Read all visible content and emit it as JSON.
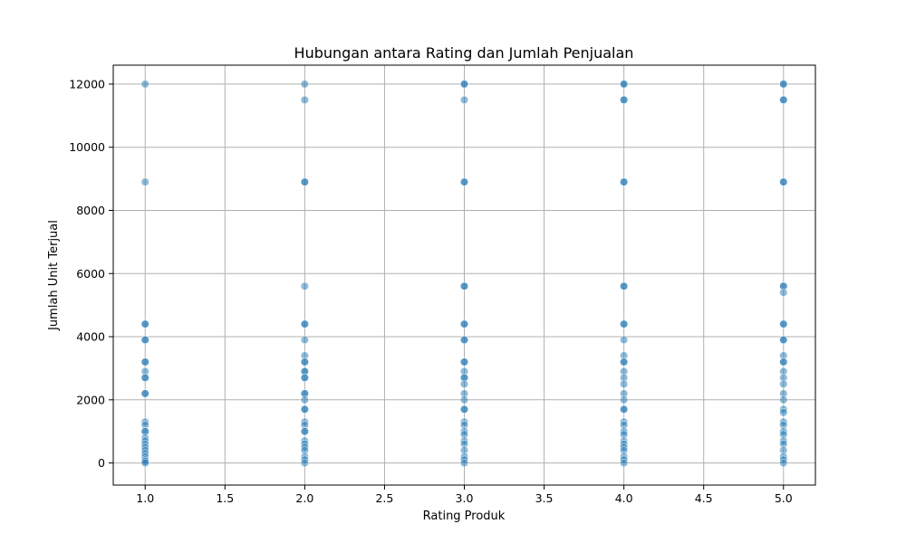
{
  "chart_data": {
    "type": "scatter",
    "title": "Hubungan antara Rating dan Jumlah Penjualan",
    "xlabel": "Rating Produk",
    "ylabel": "Jumlah Unit Terjual",
    "xlim": [
      0.8,
      5.2
    ],
    "ylim": [
      -700,
      12600
    ],
    "xticks": [
      1.0,
      1.5,
      2.0,
      2.5,
      3.0,
      3.5,
      4.0,
      4.5,
      5.0
    ],
    "xtick_labels": [
      "1.0",
      "1.5",
      "2.0",
      "2.5",
      "3.0",
      "3.5",
      "4.0",
      "4.5",
      "5.0"
    ],
    "yticks": [
      0,
      2000,
      4000,
      6000,
      8000,
      10000,
      12000
    ],
    "ytick_labels": [
      "0",
      "2000",
      "4000",
      "6000",
      "8000",
      "10000",
      "12000"
    ],
    "grid": true,
    "marker_color": "#1f77b4",
    "marker_alpha": 0.5,
    "points": [
      {
        "x": 1,
        "y": 12000
      },
      {
        "x": 1,
        "y": 8900
      },
      {
        "x": 1,
        "y": 4400
      },
      {
        "x": 1,
        "y": 4400
      },
      {
        "x": 1,
        "y": 3900
      },
      {
        "x": 1,
        "y": 3900
      },
      {
        "x": 1,
        "y": 3200
      },
      {
        "x": 1,
        "y": 3200
      },
      {
        "x": 1,
        "y": 2900
      },
      {
        "x": 1,
        "y": 2700
      },
      {
        "x": 1,
        "y": 2700
      },
      {
        "x": 1,
        "y": 2200
      },
      {
        "x": 1,
        "y": 2200
      },
      {
        "x": 1,
        "y": 1300
      },
      {
        "x": 1,
        "y": 1200
      },
      {
        "x": 1,
        "y": 1000
      },
      {
        "x": 1,
        "y": 1000
      },
      {
        "x": 1,
        "y": 800
      },
      {
        "x": 1,
        "y": 700
      },
      {
        "x": 1,
        "y": 600
      },
      {
        "x": 1,
        "y": 500
      },
      {
        "x": 1,
        "y": 400
      },
      {
        "x": 1,
        "y": 300
      },
      {
        "x": 1,
        "y": 200
      },
      {
        "x": 1,
        "y": 100
      },
      {
        "x": 1,
        "y": 50
      },
      {
        "x": 1,
        "y": 0
      },
      {
        "x": 2,
        "y": 12000
      },
      {
        "x": 2,
        "y": 11500
      },
      {
        "x": 2,
        "y": 8900
      },
      {
        "x": 2,
        "y": 8900
      },
      {
        "x": 2,
        "y": 5600
      },
      {
        "x": 2,
        "y": 4400
      },
      {
        "x": 2,
        "y": 4400
      },
      {
        "x": 2,
        "y": 3900
      },
      {
        "x": 2,
        "y": 3400
      },
      {
        "x": 2,
        "y": 3200
      },
      {
        "x": 2,
        "y": 3200
      },
      {
        "x": 2,
        "y": 2900
      },
      {
        "x": 2,
        "y": 2900
      },
      {
        "x": 2,
        "y": 2700
      },
      {
        "x": 2,
        "y": 2700
      },
      {
        "x": 2,
        "y": 2200
      },
      {
        "x": 2,
        "y": 2200
      },
      {
        "x": 2,
        "y": 2000
      },
      {
        "x": 2,
        "y": 1700
      },
      {
        "x": 2,
        "y": 1700
      },
      {
        "x": 2,
        "y": 1300
      },
      {
        "x": 2,
        "y": 1200
      },
      {
        "x": 2,
        "y": 1000
      },
      {
        "x": 2,
        "y": 1000
      },
      {
        "x": 2,
        "y": 700
      },
      {
        "x": 2,
        "y": 600
      },
      {
        "x": 2,
        "y": 500
      },
      {
        "x": 2,
        "y": 400
      },
      {
        "x": 2,
        "y": 200
      },
      {
        "x": 2,
        "y": 100
      },
      {
        "x": 2,
        "y": 0
      },
      {
        "x": 3,
        "y": 12000
      },
      {
        "x": 3,
        "y": 12000
      },
      {
        "x": 3,
        "y": 11500
      },
      {
        "x": 3,
        "y": 8900
      },
      {
        "x": 3,
        "y": 8900
      },
      {
        "x": 3,
        "y": 5600
      },
      {
        "x": 3,
        "y": 5600
      },
      {
        "x": 3,
        "y": 4400
      },
      {
        "x": 3,
        "y": 4400
      },
      {
        "x": 3,
        "y": 3900
      },
      {
        "x": 3,
        "y": 3900
      },
      {
        "x": 3,
        "y": 3200
      },
      {
        "x": 3,
        "y": 3200
      },
      {
        "x": 3,
        "y": 2900
      },
      {
        "x": 3,
        "y": 2700
      },
      {
        "x": 3,
        "y": 2700
      },
      {
        "x": 3,
        "y": 2500
      },
      {
        "x": 3,
        "y": 2200
      },
      {
        "x": 3,
        "y": 2000
      },
      {
        "x": 3,
        "y": 1700
      },
      {
        "x": 3,
        "y": 1700
      },
      {
        "x": 3,
        "y": 1300
      },
      {
        "x": 3,
        "y": 1200
      },
      {
        "x": 3,
        "y": 1000
      },
      {
        "x": 3,
        "y": 900
      },
      {
        "x": 3,
        "y": 700
      },
      {
        "x": 3,
        "y": 600
      },
      {
        "x": 3,
        "y": 400
      },
      {
        "x": 3,
        "y": 200
      },
      {
        "x": 3,
        "y": 100
      },
      {
        "x": 3,
        "y": 0
      },
      {
        "x": 4,
        "y": 12000
      },
      {
        "x": 4,
        "y": 12000
      },
      {
        "x": 4,
        "y": 11500
      },
      {
        "x": 4,
        "y": 11500
      },
      {
        "x": 4,
        "y": 8900
      },
      {
        "x": 4,
        "y": 8900
      },
      {
        "x": 4,
        "y": 5600
      },
      {
        "x": 4,
        "y": 5600
      },
      {
        "x": 4,
        "y": 4400
      },
      {
        "x": 4,
        "y": 4400
      },
      {
        "x": 4,
        "y": 3900
      },
      {
        "x": 4,
        "y": 3400
      },
      {
        "x": 4,
        "y": 3200
      },
      {
        "x": 4,
        "y": 3200
      },
      {
        "x": 4,
        "y": 2900
      },
      {
        "x": 4,
        "y": 2700
      },
      {
        "x": 4,
        "y": 2500
      },
      {
        "x": 4,
        "y": 2200
      },
      {
        "x": 4,
        "y": 2000
      },
      {
        "x": 4,
        "y": 1700
      },
      {
        "x": 4,
        "y": 1700
      },
      {
        "x": 4,
        "y": 1300
      },
      {
        "x": 4,
        "y": 1200
      },
      {
        "x": 4,
        "y": 1000
      },
      {
        "x": 4,
        "y": 900
      },
      {
        "x": 4,
        "y": 700
      },
      {
        "x": 4,
        "y": 600
      },
      {
        "x": 4,
        "y": 500
      },
      {
        "x": 4,
        "y": 400
      },
      {
        "x": 4,
        "y": 200
      },
      {
        "x": 4,
        "y": 100
      },
      {
        "x": 4,
        "y": 0
      },
      {
        "x": 5,
        "y": 12000
      },
      {
        "x": 5,
        "y": 12000
      },
      {
        "x": 5,
        "y": 11500
      },
      {
        "x": 5,
        "y": 11500
      },
      {
        "x": 5,
        "y": 8900
      },
      {
        "x": 5,
        "y": 8900
      },
      {
        "x": 5,
        "y": 5600
      },
      {
        "x": 5,
        "y": 5600
      },
      {
        "x": 5,
        "y": 5400
      },
      {
        "x": 5,
        "y": 4400
      },
      {
        "x": 5,
        "y": 4400
      },
      {
        "x": 5,
        "y": 3900
      },
      {
        "x": 5,
        "y": 3900
      },
      {
        "x": 5,
        "y": 3400
      },
      {
        "x": 5,
        "y": 3200
      },
      {
        "x": 5,
        "y": 3200
      },
      {
        "x": 5,
        "y": 2900
      },
      {
        "x": 5,
        "y": 2700
      },
      {
        "x": 5,
        "y": 2500
      },
      {
        "x": 5,
        "y": 2200
      },
      {
        "x": 5,
        "y": 2000
      },
      {
        "x": 5,
        "y": 1700
      },
      {
        "x": 5,
        "y": 1600
      },
      {
        "x": 5,
        "y": 1300
      },
      {
        "x": 5,
        "y": 1200
      },
      {
        "x": 5,
        "y": 1000
      },
      {
        "x": 5,
        "y": 900
      },
      {
        "x": 5,
        "y": 700
      },
      {
        "x": 5,
        "y": 600
      },
      {
        "x": 5,
        "y": 400
      },
      {
        "x": 5,
        "y": 200
      },
      {
        "x": 5,
        "y": 100
      },
      {
        "x": 5,
        "y": 0
      }
    ]
  }
}
